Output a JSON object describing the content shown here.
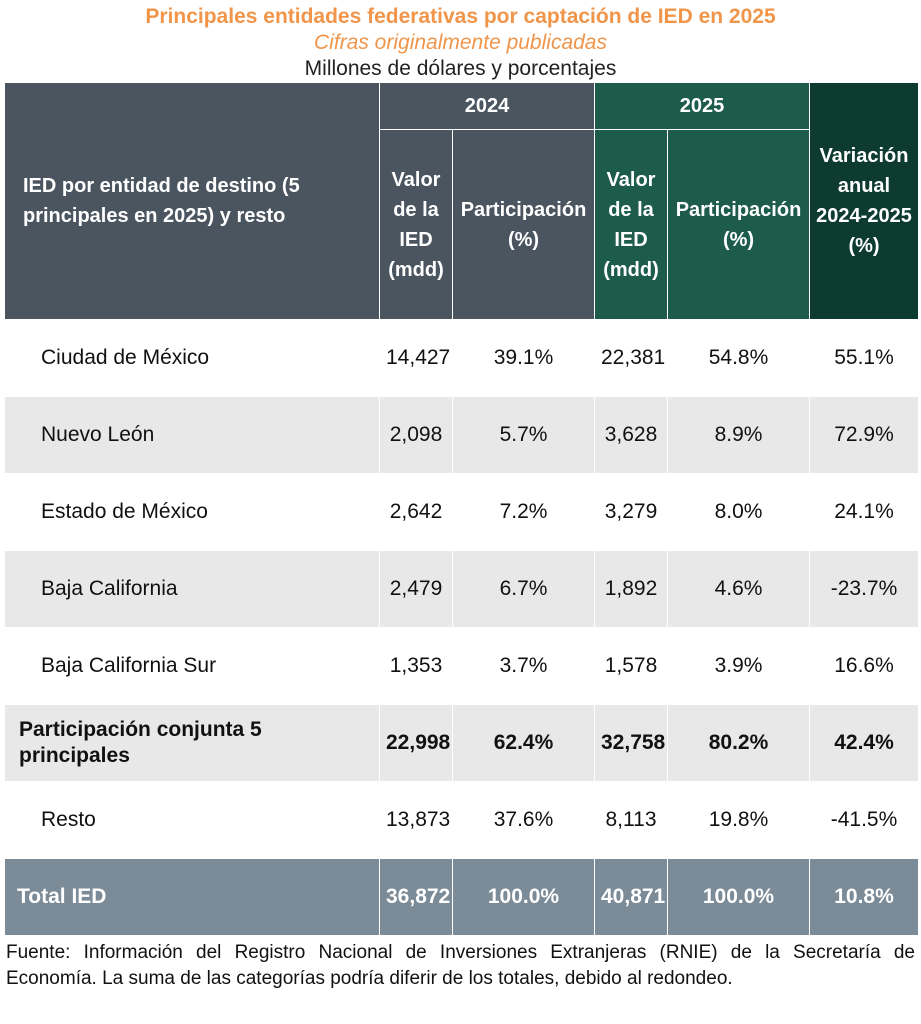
{
  "title": "Principales entidades federativas por captación de IED en 2025",
  "subtitle": "Cifras originalmente publicadas",
  "units": "Millones de dólares y porcentajes",
  "header": {
    "entity": "IED por entidad de destino (5 principales en 2025) y resto",
    "year_2024": "2024",
    "year_2025": "2025",
    "variation": "Variación anual 2024-2025 (%)",
    "value_label": "Valor de la IED (mdd)",
    "share_label": "Participación (%)"
  },
  "rows": [
    {
      "name": "Ciudad de México",
      "v2024": "14,427",
      "p2024": "39.1%",
      "v2025": "22,381",
      "p2025": "54.8%",
      "var": "55.1%"
    },
    {
      "name": "Nuevo León",
      "v2024": "2,098",
      "p2024": "5.7%",
      "v2025": "3,628",
      "p2025": "8.9%",
      "var": "72.9%"
    },
    {
      "name": "Estado de México",
      "v2024": "2,642",
      "p2024": "7.2%",
      "v2025": "3,279",
      "p2025": "8.0%",
      "var": "24.1%"
    },
    {
      "name": "Baja California",
      "v2024": "2,479",
      "p2024": "6.7%",
      "v2025": "1,892",
      "p2025": "4.6%",
      "var": "-23.7%"
    },
    {
      "name": "Baja California Sur",
      "v2024": "1,353",
      "p2024": "3.7%",
      "v2025": "1,578",
      "p2025": "3.9%",
      "var": "16.6%"
    },
    {
      "name": "Participación conjunta 5 principales",
      "v2024": "22,998",
      "p2024": "62.4%",
      "v2025": "32,758",
      "p2025": "80.2%",
      "var": "42.4%"
    },
    {
      "name": "Resto",
      "v2024": "13,873",
      "p2024": "37.6%",
      "v2025": "8,113",
      "p2025": "19.8%",
      "var": "-41.5%"
    },
    {
      "name": "Total IED",
      "v2024": "36,872",
      "p2024": "100.0%",
      "v2025": "40,871",
      "p2025": "100.0%",
      "var": "10.8%"
    }
  ],
  "source": "Fuente: Información del Registro Nacional de Inversiones Extranjeras (RNIE) de la Secretaría de Economía. La suma de las categorías podría diferir de los totales, debido al redondeo."
}
